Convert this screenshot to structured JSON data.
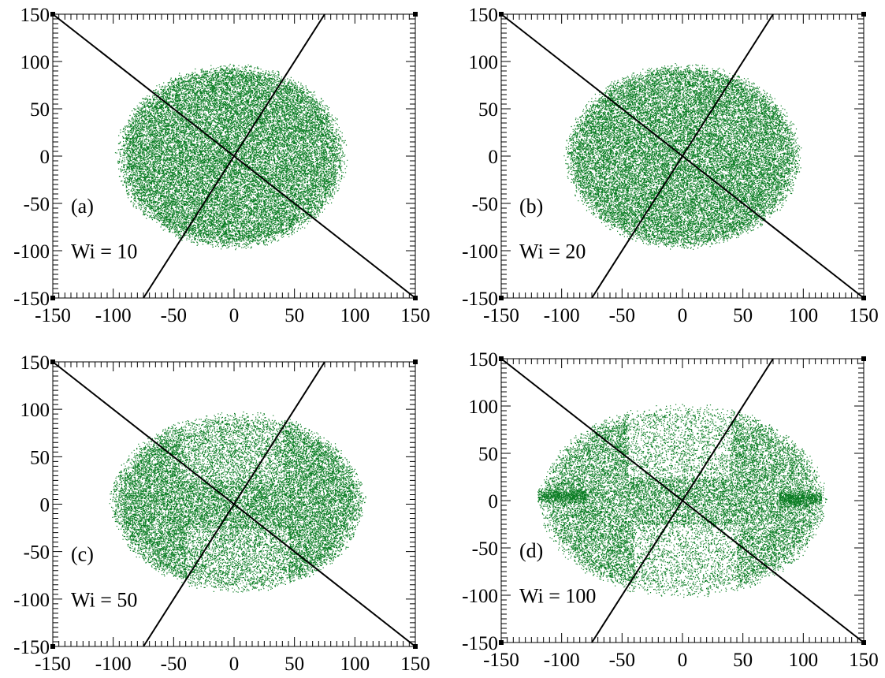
{
  "chart_data": [
    {
      "type": "scatter",
      "panel_label": "(a)",
      "annotation": "Wi = 10",
      "xlim": [
        -150,
        150
      ],
      "ylim": [
        -150,
        150
      ],
      "xticks": [
        "-150",
        "-100",
        "-50",
        "0",
        "50",
        "100",
        "150"
      ],
      "yticks": [
        "150",
        "100",
        "50",
        "0",
        "-50",
        "-100",
        "-150"
      ],
      "grid": false,
      "point_color": "#0a7d23",
      "cloud": {
        "center": [
          0,
          0
        ],
        "x_extent": [
          -95,
          90
        ],
        "y_extent": [
          -95,
          95
        ],
        "shape": "ellipse"
      },
      "lines": [
        {
          "from": [
            -150,
            150
          ],
          "to": [
            150,
            -150
          ]
        },
        {
          "from": [
            -75,
            -150
          ],
          "to": [
            75,
            150
          ]
        }
      ]
    },
    {
      "type": "scatter",
      "panel_label": "(b)",
      "annotation": "Wi = 20",
      "xlim": [
        -150,
        150
      ],
      "ylim": [
        -150,
        150
      ],
      "xticks": [
        "-150",
        "-100",
        "-50",
        "0",
        "50",
        "100",
        "150"
      ],
      "yticks": [
        "150",
        "100",
        "50",
        "0",
        "-50",
        "-100",
        "-150"
      ],
      "grid": false,
      "point_color": "#0a7d23",
      "cloud": {
        "center": [
          0,
          0
        ],
        "x_extent": [
          -95,
          95
        ],
        "y_extent": [
          -95,
          95
        ],
        "shape": "ellipse"
      },
      "lines": [
        {
          "from": [
            -150,
            150
          ],
          "to": [
            150,
            -150
          ]
        },
        {
          "from": [
            -75,
            -150
          ],
          "to": [
            75,
            150
          ]
        }
      ]
    },
    {
      "type": "scatter",
      "panel_label": "(c)",
      "annotation": "Wi = 50",
      "xlim": [
        -150,
        150
      ],
      "ylim": [
        -150,
        150
      ],
      "xticks": [
        "-150",
        "-100",
        "-50",
        "0",
        "50",
        "100",
        "150"
      ],
      "yticks": [
        "150",
        "100",
        "50",
        "0",
        "-50",
        "-100",
        "-150"
      ],
      "grid": false,
      "point_color": "#0a7d23",
      "cloud": {
        "center": [
          0,
          0
        ],
        "x_extent": [
          -100,
          105
        ],
        "y_extent": [
          -90,
          95
        ],
        "shape": "ellipse with sparse lobes"
      },
      "lines": [
        {
          "from": [
            -150,
            150
          ],
          "to": [
            150,
            -150
          ]
        },
        {
          "from": [
            -75,
            -150
          ],
          "to": [
            75,
            150
          ]
        }
      ]
    },
    {
      "type": "scatter",
      "panel_label": "(d)",
      "annotation": "Wi = 100",
      "xlim": [
        -150,
        150
      ],
      "ylim": [
        -150,
        150
      ],
      "xticks": [
        "-150",
        "-100",
        "-50",
        "0",
        "50",
        "100",
        "150"
      ],
      "yticks": [
        "150",
        "100",
        "50",
        "0",
        "-50",
        "-100",
        "-150"
      ],
      "grid": false,
      "point_color": "#0a7d23",
      "cloud": {
        "center": [
          0,
          0
        ],
        "x_extent": [
          -115,
          115
        ],
        "y_extent": [
          -100,
          100
        ],
        "shape": "ellipse with sparse lobes and horizontal streaks"
      },
      "lines": [
        {
          "from": [
            -150,
            150
          ],
          "to": [
            150,
            -150
          ]
        },
        {
          "from": [
            -75,
            -150
          ],
          "to": [
            75,
            150
          ]
        }
      ]
    }
  ]
}
